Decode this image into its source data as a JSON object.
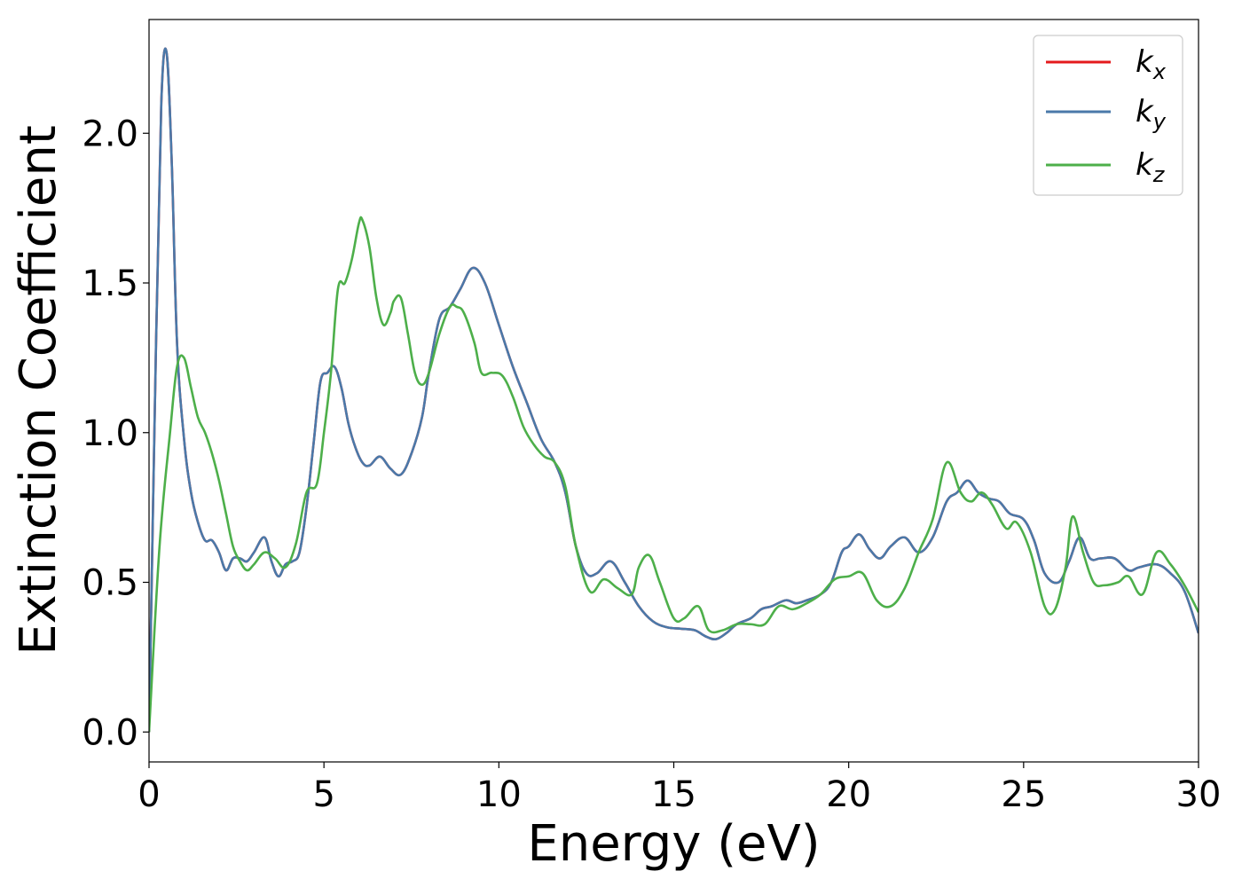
{
  "chart_data": {
    "type": "line",
    "xlabel": "Energy (eV)",
    "ylabel": "Extinction Coefficient",
    "xlim": [
      0,
      30
    ],
    "ylim": [
      -0.1,
      2.38
    ],
    "xticks": [
      0,
      5,
      10,
      15,
      20,
      25,
      30
    ],
    "xtick_labels": [
      "0",
      "5",
      "10",
      "15",
      "20",
      "25",
      "30"
    ],
    "yticks": [
      0.0,
      0.5,
      1.0,
      1.5,
      2.0
    ],
    "ytick_labels": [
      "0.0",
      "0.5",
      "1.0",
      "1.5",
      "2.0"
    ],
    "grid": false,
    "legend_position": "top-right",
    "series": [
      {
        "name": "k_x",
        "label_main": "k",
        "label_sub": "x",
        "color": "#e41a1c",
        "x": [
          0,
          0.2,
          0.35,
          0.5,
          0.65,
          0.8,
          1.0,
          1.2,
          1.4,
          1.6,
          1.8,
          2.0,
          2.2,
          2.4,
          2.6,
          2.8,
          3.0,
          3.3,
          3.5,
          3.7,
          3.9,
          4.1,
          4.3,
          4.5,
          4.7,
          4.9,
          5.1,
          5.3,
          5.5,
          5.7,
          5.9,
          6.1,
          6.3,
          6.6,
          6.9,
          7.2,
          7.5,
          7.8,
          8.0,
          8.3,
          8.6,
          8.9,
          9.25,
          9.6,
          10.0,
          10.4,
          10.8,
          11.2,
          11.6,
          11.9,
          12.2,
          12.5,
          12.8,
          13.2,
          13.6,
          14.0,
          14.4,
          14.8,
          15.2,
          15.6,
          15.9,
          16.2,
          16.5,
          16.8,
          17.2,
          17.5,
          17.8,
          18.2,
          18.5,
          18.8,
          19.2,
          19.5,
          19.8,
          20.0,
          20.3,
          20.6,
          20.9,
          21.2,
          21.6,
          22.0,
          22.4,
          22.8,
          23.1,
          23.4,
          23.7,
          24.0,
          24.3,
          24.6,
          25.0,
          25.3,
          25.6,
          26.0,
          26.3,
          26.6,
          26.9,
          27.2,
          27.6,
          28.0,
          28.3,
          28.8,
          29.2,
          29.6,
          30.0
        ],
        "y": [
          0.0,
          1.3,
          2.1,
          2.27,
          1.9,
          1.3,
          0.98,
          0.8,
          0.7,
          0.64,
          0.64,
          0.6,
          0.54,
          0.58,
          0.58,
          0.57,
          0.6,
          0.65,
          0.57,
          0.52,
          0.56,
          0.57,
          0.6,
          0.75,
          0.96,
          1.17,
          1.2,
          1.22,
          1.15,
          1.03,
          0.95,
          0.9,
          0.89,
          0.92,
          0.88,
          0.86,
          0.93,
          1.05,
          1.2,
          1.38,
          1.42,
          1.48,
          1.55,
          1.5,
          1.36,
          1.22,
          1.1,
          0.98,
          0.9,
          0.8,
          0.62,
          0.53,
          0.53,
          0.57,
          0.5,
          0.42,
          0.37,
          0.35,
          0.345,
          0.34,
          0.32,
          0.31,
          0.33,
          0.36,
          0.38,
          0.41,
          0.42,
          0.44,
          0.43,
          0.44,
          0.46,
          0.5,
          0.6,
          0.62,
          0.66,
          0.61,
          0.58,
          0.62,
          0.65,
          0.6,
          0.65,
          0.77,
          0.8,
          0.84,
          0.8,
          0.78,
          0.77,
          0.73,
          0.71,
          0.64,
          0.53,
          0.5,
          0.57,
          0.65,
          0.58,
          0.58,
          0.58,
          0.54,
          0.55,
          0.56,
          0.53,
          0.47,
          0.33
        ]
      },
      {
        "name": "k_y",
        "label_main": "k",
        "label_sub": "y",
        "color": "#4a79a9",
        "x": [
          0,
          0.2,
          0.35,
          0.5,
          0.65,
          0.8,
          1.0,
          1.2,
          1.4,
          1.6,
          1.8,
          2.0,
          2.2,
          2.4,
          2.6,
          2.8,
          3.0,
          3.3,
          3.5,
          3.7,
          3.9,
          4.1,
          4.3,
          4.5,
          4.7,
          4.9,
          5.1,
          5.3,
          5.5,
          5.7,
          5.9,
          6.1,
          6.3,
          6.6,
          6.9,
          7.2,
          7.5,
          7.8,
          8.0,
          8.3,
          8.6,
          8.9,
          9.25,
          9.6,
          10.0,
          10.4,
          10.8,
          11.2,
          11.6,
          11.9,
          12.2,
          12.5,
          12.8,
          13.2,
          13.6,
          14.0,
          14.4,
          14.8,
          15.2,
          15.6,
          15.9,
          16.2,
          16.5,
          16.8,
          17.2,
          17.5,
          17.8,
          18.2,
          18.5,
          18.8,
          19.2,
          19.5,
          19.8,
          20.0,
          20.3,
          20.6,
          20.9,
          21.2,
          21.6,
          22.0,
          22.4,
          22.8,
          23.1,
          23.4,
          23.7,
          24.0,
          24.3,
          24.6,
          25.0,
          25.3,
          25.6,
          26.0,
          26.3,
          26.6,
          26.9,
          27.2,
          27.6,
          28.0,
          28.3,
          28.8,
          29.2,
          29.6,
          30.0
        ],
        "y": [
          0.0,
          1.3,
          2.1,
          2.27,
          1.9,
          1.3,
          0.98,
          0.8,
          0.7,
          0.64,
          0.64,
          0.6,
          0.54,
          0.58,
          0.58,
          0.57,
          0.6,
          0.65,
          0.57,
          0.52,
          0.56,
          0.57,
          0.6,
          0.75,
          0.96,
          1.17,
          1.2,
          1.22,
          1.15,
          1.03,
          0.95,
          0.9,
          0.89,
          0.92,
          0.88,
          0.86,
          0.93,
          1.05,
          1.2,
          1.38,
          1.42,
          1.48,
          1.55,
          1.5,
          1.36,
          1.22,
          1.1,
          0.98,
          0.9,
          0.8,
          0.62,
          0.53,
          0.53,
          0.57,
          0.5,
          0.42,
          0.37,
          0.35,
          0.345,
          0.34,
          0.32,
          0.31,
          0.33,
          0.36,
          0.38,
          0.41,
          0.42,
          0.44,
          0.43,
          0.44,
          0.46,
          0.5,
          0.6,
          0.62,
          0.66,
          0.61,
          0.58,
          0.62,
          0.65,
          0.6,
          0.65,
          0.77,
          0.8,
          0.84,
          0.8,
          0.78,
          0.77,
          0.73,
          0.71,
          0.64,
          0.53,
          0.5,
          0.57,
          0.65,
          0.58,
          0.58,
          0.58,
          0.54,
          0.55,
          0.56,
          0.53,
          0.47,
          0.33
        ]
      },
      {
        "name": "k_z",
        "label_main": "k",
        "label_sub": "z",
        "color": "#4daf4a",
        "x": [
          0,
          0.3,
          0.6,
          0.8,
          1.0,
          1.2,
          1.4,
          1.6,
          1.8,
          2.0,
          2.2,
          2.4,
          2.6,
          2.8,
          3.0,
          3.3,
          3.6,
          3.9,
          4.2,
          4.5,
          4.8,
          5.0,
          5.2,
          5.4,
          5.6,
          5.8,
          6.0,
          6.1,
          6.3,
          6.5,
          6.7,
          6.9,
          7.0,
          7.2,
          7.4,
          7.6,
          7.8,
          8.0,
          8.3,
          8.6,
          8.8,
          9.0,
          9.3,
          9.5,
          9.8,
          10.1,
          10.4,
          10.7,
          11.0,
          11.3,
          11.6,
          11.9,
          12.2,
          12.6,
          13.0,
          13.4,
          13.8,
          14.0,
          14.3,
          14.6,
          15.0,
          15.3,
          15.7,
          16.0,
          16.4,
          16.8,
          17.2,
          17.6,
          18.0,
          18.4,
          18.8,
          19.2,
          19.6,
          20.0,
          20.4,
          20.8,
          21.2,
          21.6,
          22.0,
          22.4,
          22.8,
          23.2,
          23.5,
          23.8,
          24.1,
          24.5,
          24.8,
          25.2,
          25.6,
          25.9,
          26.2,
          26.4,
          26.7,
          27.0,
          27.3,
          27.7,
          28.0,
          28.4,
          28.8,
          29.2,
          29.6,
          30.0
        ],
        "y": [
          0.0,
          0.62,
          1.0,
          1.22,
          1.25,
          1.15,
          1.05,
          1.0,
          0.93,
          0.84,
          0.73,
          0.62,
          0.57,
          0.54,
          0.56,
          0.6,
          0.58,
          0.55,
          0.63,
          0.8,
          0.83,
          1.0,
          1.2,
          1.48,
          1.5,
          1.58,
          1.7,
          1.71,
          1.62,
          1.45,
          1.36,
          1.4,
          1.44,
          1.45,
          1.33,
          1.2,
          1.16,
          1.2,
          1.33,
          1.42,
          1.42,
          1.4,
          1.3,
          1.2,
          1.2,
          1.19,
          1.12,
          1.02,
          0.96,
          0.92,
          0.9,
          0.82,
          0.62,
          0.47,
          0.51,
          0.48,
          0.46,
          0.55,
          0.59,
          0.5,
          0.38,
          0.38,
          0.42,
          0.34,
          0.34,
          0.36,
          0.36,
          0.36,
          0.42,
          0.41,
          0.43,
          0.46,
          0.51,
          0.52,
          0.53,
          0.44,
          0.42,
          0.48,
          0.6,
          0.71,
          0.9,
          0.8,
          0.77,
          0.8,
          0.76,
          0.68,
          0.7,
          0.6,
          0.42,
          0.41,
          0.55,
          0.72,
          0.6,
          0.5,
          0.49,
          0.5,
          0.52,
          0.46,
          0.6,
          0.56,
          0.49,
          0.4
        ]
      }
    ]
  }
}
